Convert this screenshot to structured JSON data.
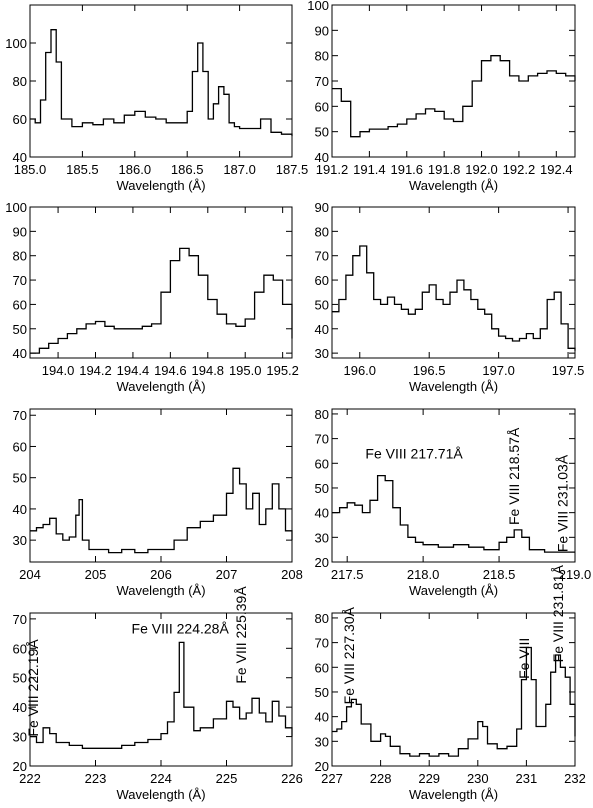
{
  "chart_data": [
    {
      "type": "line",
      "xlabel": "Wavelength (Å)",
      "xlim": [
        185.0,
        187.5
      ],
      "ylim": [
        40,
        120
      ],
      "xticks": [
        "185.0",
        "185.5",
        "186.0",
        "186.5",
        "187.0",
        "187.5"
      ],
      "yticks": [
        "40",
        "60",
        "80",
        "100"
      ],
      "annotations": [],
      "series": [
        {
          "x": [
            185.0,
            185.05,
            185.1,
            185.15,
            185.2,
            185.25,
            185.3,
            185.4,
            185.5,
            185.6,
            185.7,
            185.8,
            185.9,
            186.0,
            186.1,
            186.2,
            186.3,
            186.4,
            186.5,
            186.55,
            186.6,
            186.65,
            186.7,
            186.75,
            186.8,
            186.85,
            186.9,
            186.95,
            187.0,
            187.1,
            187.2,
            187.3,
            187.4,
            187.5
          ],
          "y": [
            60,
            58,
            70,
            95,
            107,
            90,
            60,
            56,
            58,
            57,
            60,
            58,
            62,
            64,
            61,
            60,
            58,
            58,
            64,
            85,
            100,
            85,
            60,
            68,
            77,
            73,
            58,
            56,
            55,
            55,
            60,
            53,
            52,
            51
          ]
        }
      ]
    },
    {
      "type": "line",
      "xlabel": "Wavelength (Å)",
      "xlim": [
        191.2,
        192.5
      ],
      "ylim": [
        40,
        100
      ],
      "xticks": [
        "191.2",
        "191.4",
        "191.6",
        "191.8",
        "192.0",
        "192.2",
        "192.4"
      ],
      "yticks": [
        "40",
        "50",
        "60",
        "70",
        "80",
        "90",
        "100"
      ],
      "annotations": [],
      "series": [
        {
          "x": [
            191.2,
            191.25,
            191.3,
            191.35,
            191.4,
            191.45,
            191.5,
            191.55,
            191.6,
            191.65,
            191.7,
            191.75,
            191.8,
            191.85,
            191.9,
            191.95,
            192.0,
            192.05,
            192.1,
            192.15,
            192.2,
            192.25,
            192.3,
            192.35,
            192.4,
            192.45,
            192.5
          ],
          "y": [
            67,
            62,
            48,
            50,
            51,
            51,
            52,
            53,
            55,
            57,
            59,
            58,
            55,
            54,
            60,
            70,
            78,
            80,
            78,
            72,
            70,
            72,
            73,
            74,
            73,
            72,
            70
          ]
        }
      ]
    },
    {
      "type": "line",
      "xlabel": "Wavelength (Å)",
      "xlim": [
        193.85,
        195.25
      ],
      "ylim": [
        38,
        100
      ],
      "xticks": [
        "194.0",
        "194.2",
        "194.4",
        "194.6",
        "194.8",
        "195.0",
        "195.2"
      ],
      "yticks": [
        "40",
        "50",
        "60",
        "70",
        "80",
        "90",
        "100"
      ],
      "annotations": [],
      "series": [
        {
          "x": [
            193.85,
            193.9,
            193.95,
            194.0,
            194.05,
            194.1,
            194.15,
            194.2,
            194.25,
            194.3,
            194.35,
            194.4,
            194.45,
            194.5,
            194.55,
            194.6,
            194.65,
            194.7,
            194.75,
            194.8,
            194.85,
            194.9,
            194.95,
            195.0,
            195.05,
            195.1,
            195.15,
            195.2,
            195.25
          ],
          "y": [
            40,
            42,
            44,
            46,
            48,
            50,
            52,
            53,
            51,
            50,
            50,
            50,
            51,
            52,
            65,
            78,
            83,
            80,
            72,
            62,
            56,
            52,
            51,
            54,
            65,
            72,
            70,
            60,
            46
          ]
        }
      ]
    },
    {
      "type": "line",
      "xlabel": "Wavelength (Å)",
      "xlim": [
        195.8,
        197.55
      ],
      "ylim": [
        28,
        90
      ],
      "xticks": [
        "196.0",
        "196.5",
        "197.0",
        "197.5"
      ],
      "yticks": [
        "30",
        "40",
        "50",
        "60",
        "70",
        "80",
        "90"
      ],
      "annotations": [],
      "series": [
        {
          "x": [
            195.8,
            195.85,
            195.9,
            195.95,
            196.0,
            196.05,
            196.1,
            196.15,
            196.2,
            196.25,
            196.3,
            196.35,
            196.4,
            196.45,
            196.5,
            196.55,
            196.6,
            196.65,
            196.7,
            196.75,
            196.8,
            196.85,
            196.9,
            196.95,
            197.0,
            197.05,
            197.1,
            197.15,
            197.2,
            197.25,
            197.3,
            197.35,
            197.4,
            197.45,
            197.5,
            197.55
          ],
          "y": [
            47,
            52,
            62,
            70,
            74,
            63,
            52,
            50,
            53,
            50,
            48,
            46,
            48,
            55,
            58,
            52,
            50,
            55,
            60,
            56,
            52,
            48,
            46,
            40,
            37,
            36,
            35,
            36,
            38,
            36,
            40,
            52,
            55,
            42,
            32,
            31
          ]
        }
      ]
    },
    {
      "type": "line",
      "xlabel": "Wavelength (Å)",
      "xlim": [
        204.0,
        208.0
      ],
      "ylim": [
        23,
        72
      ],
      "xticks": [
        "204",
        "205",
        "206",
        "207",
        "208"
      ],
      "yticks": [
        "30",
        "40",
        "50",
        "60",
        "70"
      ],
      "annotations": [],
      "series": [
        {
          "x": [
            204.0,
            204.1,
            204.2,
            204.3,
            204.4,
            204.5,
            204.6,
            204.7,
            204.75,
            204.8,
            204.9,
            205.0,
            205.2,
            205.4,
            205.6,
            205.8,
            206.0,
            206.2,
            206.4,
            206.6,
            206.8,
            207.0,
            207.1,
            207.2,
            207.3,
            207.4,
            207.5,
            207.6,
            207.7,
            207.8,
            207.9,
            208.0
          ],
          "y": [
            33,
            34,
            35,
            37,
            32,
            30,
            31,
            38,
            43,
            30,
            27,
            27,
            26,
            27,
            26,
            27,
            27,
            30,
            34,
            36,
            38,
            45,
            53,
            48,
            40,
            45,
            35,
            40,
            48,
            40,
            33,
            30
          ]
        }
      ]
    },
    {
      "type": "line",
      "xlabel": "Wavelength (Å)",
      "xlim": [
        217.4,
        219.0
      ],
      "ylim": [
        20,
        82
      ],
      "xticks": [
        "217.5",
        "218.0",
        "218.5",
        "219.0"
      ],
      "yticks": [
        "20",
        "30",
        "40",
        "50",
        "60",
        "70",
        "80"
      ],
      "annotations": [
        "Fe VIII  217.71Å",
        "Fe VIII  218.57Å",
        "Fe VIII  231.03Å"
      ],
      "series": [
        {
          "x": [
            217.4,
            217.45,
            217.5,
            217.55,
            217.6,
            217.65,
            217.7,
            217.75,
            217.8,
            217.85,
            217.9,
            217.95,
            218.0,
            218.1,
            218.2,
            218.3,
            218.4,
            218.5,
            218.55,
            218.6,
            218.65,
            218.7,
            218.8,
            218.9,
            219.0
          ],
          "y": [
            40,
            42,
            44,
            43,
            40,
            45,
            55,
            53,
            42,
            35,
            30,
            28,
            27,
            26,
            27,
            26,
            25,
            28,
            30,
            33,
            30,
            25,
            24,
            24,
            24
          ]
        }
      ]
    },
    {
      "type": "line",
      "xlabel": "Wavelength (Å)",
      "xlim": [
        222.0,
        226.0
      ],
      "ylim": [
        20,
        72
      ],
      "xticks": [
        "222",
        "223",
        "224",
        "225",
        "226"
      ],
      "yticks": [
        "20",
        "30",
        "40",
        "50",
        "60",
        "70"
      ],
      "annotations": [
        "Fe VIII  222.19Å",
        "Fe VIII  224.28Å",
        "Fe VIII  225.39Å"
      ],
      "series": [
        {
          "x": [
            222.0,
            222.1,
            222.2,
            222.3,
            222.4,
            222.6,
            222.8,
            223.0,
            223.2,
            223.4,
            223.6,
            223.8,
            224.0,
            224.1,
            224.2,
            224.28,
            224.35,
            224.5,
            224.6,
            224.8,
            225.0,
            225.1,
            225.2,
            225.3,
            225.39,
            225.5,
            225.6,
            225.7,
            225.8,
            225.9,
            226.0
          ],
          "y": [
            30,
            28,
            33,
            31,
            28,
            27,
            26,
            26,
            26,
            27,
            28,
            29,
            31,
            35,
            45,
            62,
            40,
            32,
            33,
            36,
            42,
            40,
            36,
            38,
            43,
            38,
            35,
            42,
            37,
            33,
            30
          ]
        }
      ]
    },
    {
      "type": "line",
      "xlabel": "Wavelength (Å)",
      "xlim": [
        227.0,
        232.0
      ],
      "ylim": [
        20,
        82
      ],
      "xticks": [
        "227",
        "228",
        "229",
        "230",
        "231",
        "232"
      ],
      "yticks": [
        "20",
        "30",
        "40",
        "50",
        "60",
        "70",
        "80"
      ],
      "annotations": [
        "Fe VIII  227.30Å",
        "Fe VIII  231.81Å",
        "Fe VIII"
      ],
      "series": [
        {
          "x": [
            227.0,
            227.1,
            227.2,
            227.3,
            227.4,
            227.5,
            227.6,
            227.8,
            228.0,
            228.1,
            228.2,
            228.4,
            228.6,
            228.8,
            229.0,
            229.2,
            229.4,
            229.6,
            229.8,
            230.0,
            230.1,
            230.2,
            230.4,
            230.6,
            230.8,
            230.9,
            231.0,
            231.1,
            231.2,
            231.4,
            231.5,
            231.6,
            231.7,
            231.8,
            231.9,
            232.0
          ],
          "y": [
            34,
            35,
            38,
            44,
            47,
            45,
            37,
            30,
            33,
            32,
            28,
            25,
            24,
            25,
            24,
            25,
            24,
            27,
            31,
            38,
            36,
            29,
            27,
            28,
            35,
            55,
            68,
            55,
            36,
            45,
            58,
            65,
            60,
            56,
            45,
            32
          ]
        }
      ]
    }
  ]
}
